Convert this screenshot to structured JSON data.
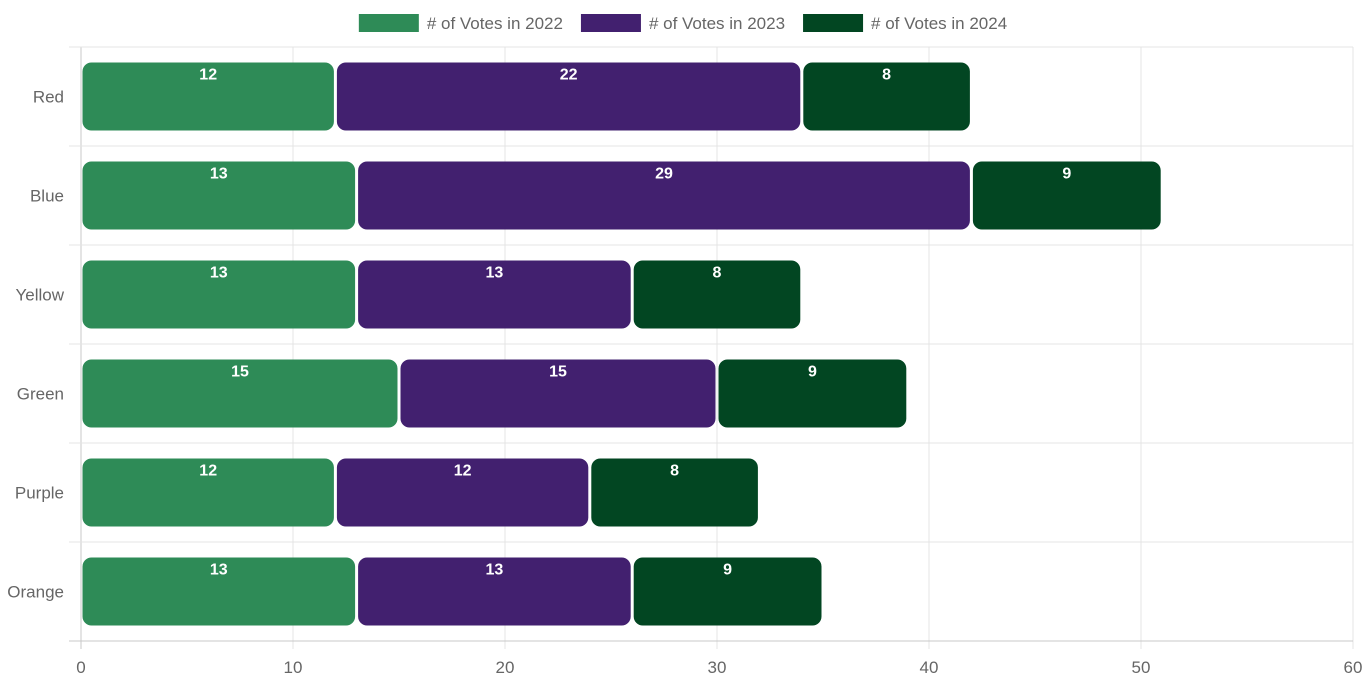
{
  "chart_data": {
    "type": "bar",
    "orientation": "horizontal",
    "stacked": true,
    "categories": [
      "Red",
      "Blue",
      "Yellow",
      "Green",
      "Purple",
      "Orange"
    ],
    "series": [
      {
        "name": "# of Votes in 2022",
        "color": "#2e8b57",
        "values": [
          12,
          13,
          13,
          15,
          12,
          13
        ]
      },
      {
        "name": "# of Votes in 2023",
        "color": "#42206f",
        "values": [
          22,
          29,
          13,
          15,
          12,
          13
        ]
      },
      {
        "name": "# of Votes in 2024",
        "color": "#024622",
        "values": [
          8,
          9,
          8,
          9,
          8,
          9
        ]
      }
    ],
    "xlim": [
      0,
      60
    ],
    "xticks": [
      0,
      10,
      20,
      30,
      40,
      50,
      60
    ],
    "grid": true,
    "legend_position": "top",
    "data_labels": true,
    "title": "",
    "xlabel": "",
    "ylabel": ""
  }
}
